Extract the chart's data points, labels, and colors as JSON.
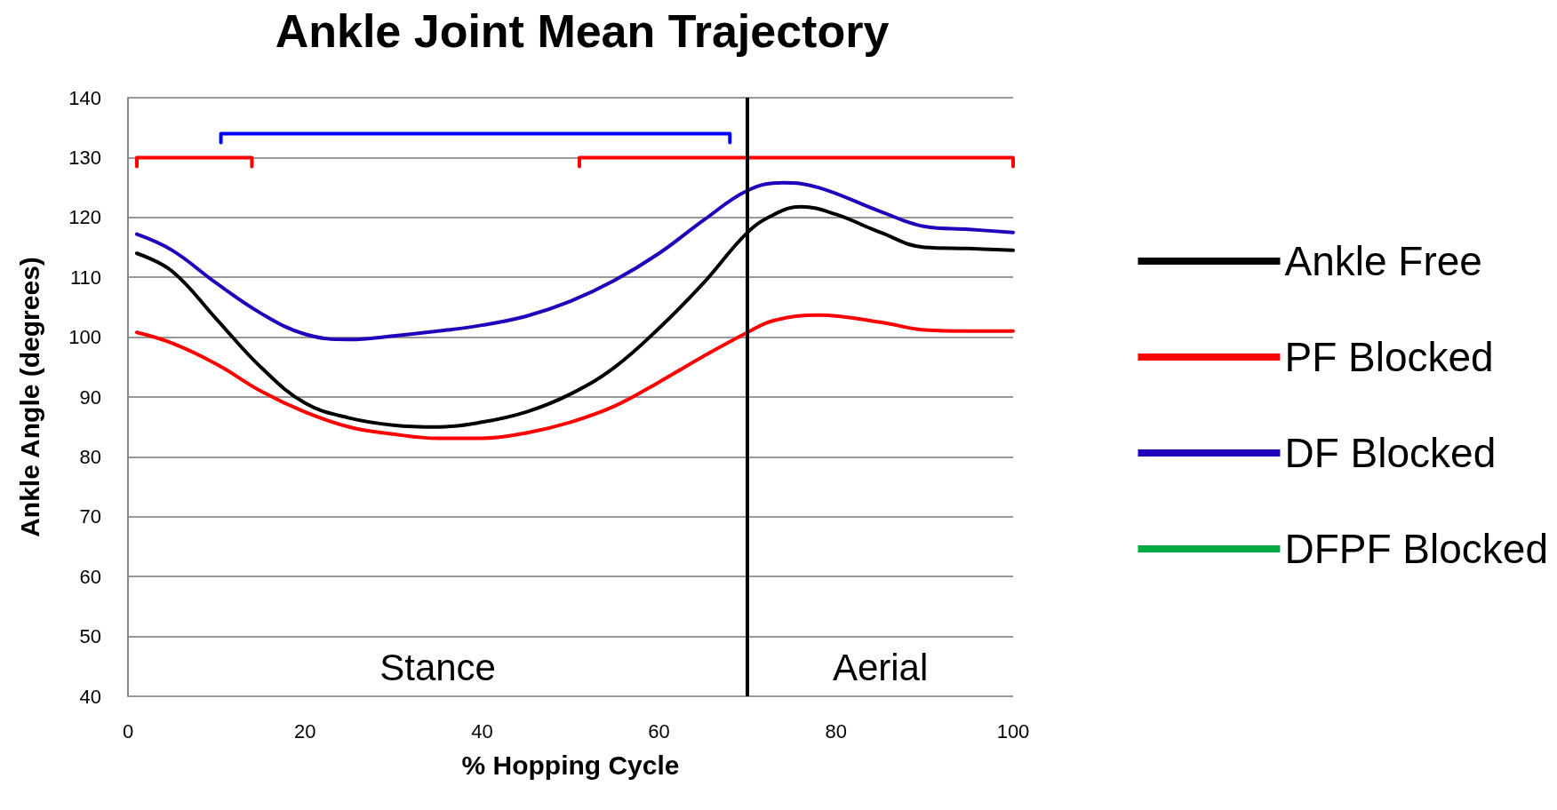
{
  "chart_data": {
    "type": "line",
    "title": "Ankle Joint Mean Trajectory",
    "xlabel": "% Hopping Cycle",
    "ylabel": "Ankle Angle (degrees)",
    "xlim": [
      0,
      100
    ],
    "xticks": [
      0,
      20,
      40,
      60,
      80,
      100
    ],
    "ylim": [
      40,
      140
    ],
    "yticks": [
      40,
      50,
      60,
      70,
      80,
      90,
      100,
      110,
      120,
      130,
      140
    ],
    "grid": "y",
    "legend": "right",
    "marker": "none",
    "line_style": "solid",
    "series": [
      {
        "name": "Ankle Free",
        "color": "#000000",
        "x": [
          1,
          5,
          10,
          15,
          20,
          25,
          30,
          35,
          40,
          45,
          50,
          55,
          60,
          65,
          70,
          73,
          76,
          80,
          85,
          90,
          95,
          100
        ],
        "values": [
          114,
          111,
          103,
          95,
          89,
          86.5,
          85.3,
          85,
          85.8,
          87.5,
          90.5,
          95,
          101.5,
          109,
          117.5,
          120.5,
          121.8,
          120.5,
          117.5,
          115,
          114.8,
          114.5
        ]
      },
      {
        "name": "PF Blocked",
        "color": "#ff0000",
        "x": [
          1,
          5,
          10,
          15,
          20,
          25,
          30,
          35,
          40,
          45,
          50,
          55,
          60,
          65,
          70,
          73,
          78,
          85,
          90,
          95,
          100
        ],
        "values": [
          100.8,
          99,
          95.5,
          91,
          87.5,
          85,
          83.8,
          83.1,
          83.1,
          84,
          85.8,
          88.5,
          92.5,
          96.8,
          100.8,
          102.8,
          103.7,
          102.5,
          101.2,
          101,
          101
        ]
      },
      {
        "name": "DF Blocked",
        "color": "#2200bb",
        "x": [
          1,
          5,
          10,
          15,
          20,
          25,
          30,
          35,
          40,
          45,
          50,
          55,
          60,
          65,
          70,
          74,
          78,
          85,
          90,
          95,
          100
        ],
        "values": [
          117.2,
          114.5,
          109,
          104,
          100.5,
          99.6,
          100.2,
          101,
          102,
          103.5,
          106,
          109.5,
          114,
          119.5,
          124.5,
          125.8,
          125,
          121,
          118.5,
          118,
          117.5
        ]
      },
      {
        "name": "DFPF Blocked",
        "color": "#00aa44"
      },
      {
        "color": "#ff0000",
        "x": [
          1,
          1,
          14,
          14
        ],
        "values": [
          128.5,
          130,
          130,
          128.5
        ]
      },
      {
        "color": "#ff0000",
        "x": [
          51,
          51,
          100,
          100
        ],
        "values": [
          128.5,
          130,
          130,
          128.5
        ]
      },
      {
        "color": "#0000ff",
        "x": [
          10.5,
          10.5,
          68,
          68
        ],
        "values": [
          132.5,
          134,
          134,
          132.5
        ]
      }
    ],
    "ref_lines": [
      {
        "axis": "x",
        "value": 70,
        "color": "#000000",
        "line_style": "solid"
      }
    ],
    "annotations": [
      "Stance",
      "Aerial"
    ]
  }
}
